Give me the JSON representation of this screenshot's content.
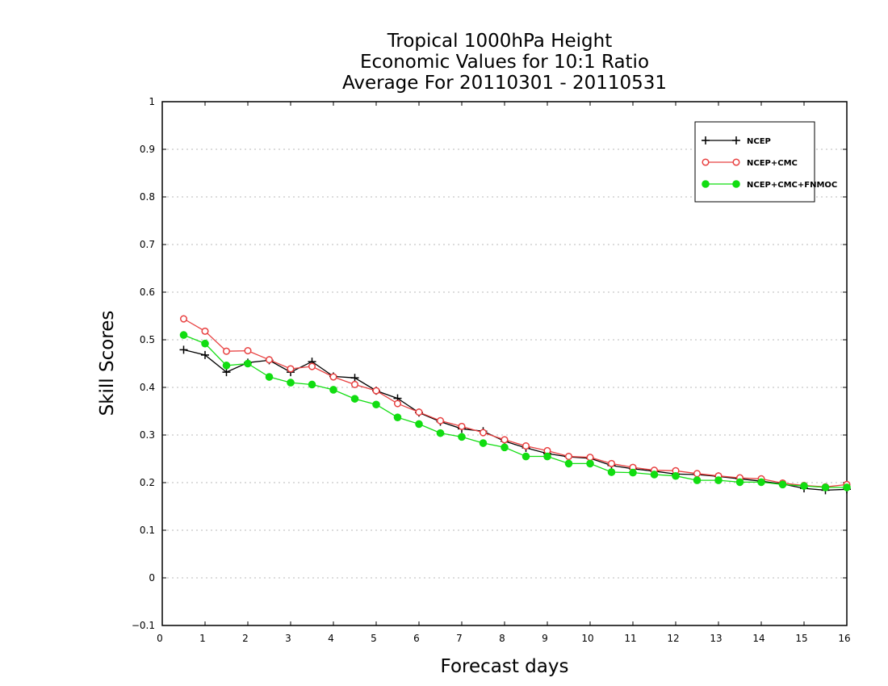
{
  "chart_data": {
    "type": "line",
    "title": [
      "Tropical 1000hPa Height",
      "Economic Values for 10:1 Ratio",
      "Average For 20110301 - 20110531"
    ],
    "xlabel": "Forecast days",
    "ylabel": "Skill Scores",
    "xlim": [
      0,
      16
    ],
    "ylim": [
      -0.1,
      1
    ],
    "xticks": [
      "0",
      "1",
      "2",
      "3",
      "4",
      "5",
      "6",
      "7",
      "8",
      "9",
      "10",
      "11",
      "12",
      "13",
      "14",
      "15",
      "16"
    ],
    "yticks": [
      "−0.1",
      "0",
      "0.1",
      "0.2",
      "0.3",
      "0.4",
      "0.5",
      "0.6",
      "0.7",
      "0.8",
      "0.9",
      "1"
    ],
    "grid": true,
    "legend_position": "top-right",
    "x": [
      0.5,
      1,
      1.5,
      2,
      2.5,
      3,
      3.5,
      4,
      4.5,
      5,
      5.5,
      6,
      6.5,
      7,
      7.5,
      8,
      8.5,
      9,
      9.5,
      10,
      10.5,
      11,
      11.5,
      12,
      12.5,
      13,
      13.5,
      14,
      14.5,
      15,
      15.5,
      16
    ],
    "series": [
      {
        "name": "NCEP",
        "color": "#000000",
        "marker": "plus",
        "values": [
          0.479,
          0.468,
          0.432,
          0.452,
          0.457,
          0.432,
          0.454,
          0.423,
          0.42,
          0.393,
          0.377,
          0.347,
          0.328,
          0.313,
          0.308,
          0.287,
          0.273,
          0.261,
          0.254,
          0.251,
          0.236,
          0.229,
          0.224,
          0.218,
          0.217,
          0.213,
          0.208,
          0.203,
          0.197,
          0.188,
          0.184,
          0.186
        ]
      },
      {
        "name": "NCEP+CMC",
        "color": "#e84040",
        "marker": "open-circle",
        "values": [
          0.544,
          0.518,
          0.476,
          0.477,
          0.458,
          0.439,
          0.444,
          0.422,
          0.406,
          0.393,
          0.366,
          0.348,
          0.33,
          0.318,
          0.305,
          0.29,
          0.277,
          0.267,
          0.255,
          0.253,
          0.24,
          0.232,
          0.226,
          0.225,
          0.219,
          0.214,
          0.21,
          0.208,
          0.199,
          0.194,
          0.191,
          0.196
        ]
      },
      {
        "name": "NCEP+CMC+FNMOC",
        "color": "#11dd11",
        "marker": "filled-circle",
        "values": [
          0.51,
          0.492,
          0.446,
          0.45,
          0.422,
          0.41,
          0.406,
          0.395,
          0.376,
          0.364,
          0.337,
          0.323,
          0.304,
          0.296,
          0.283,
          0.274,
          0.255,
          0.255,
          0.24,
          0.24,
          0.222,
          0.221,
          0.217,
          0.214,
          0.205,
          0.205,
          0.201,
          0.201,
          0.196,
          0.193,
          0.19,
          0.19
        ]
      }
    ]
  }
}
